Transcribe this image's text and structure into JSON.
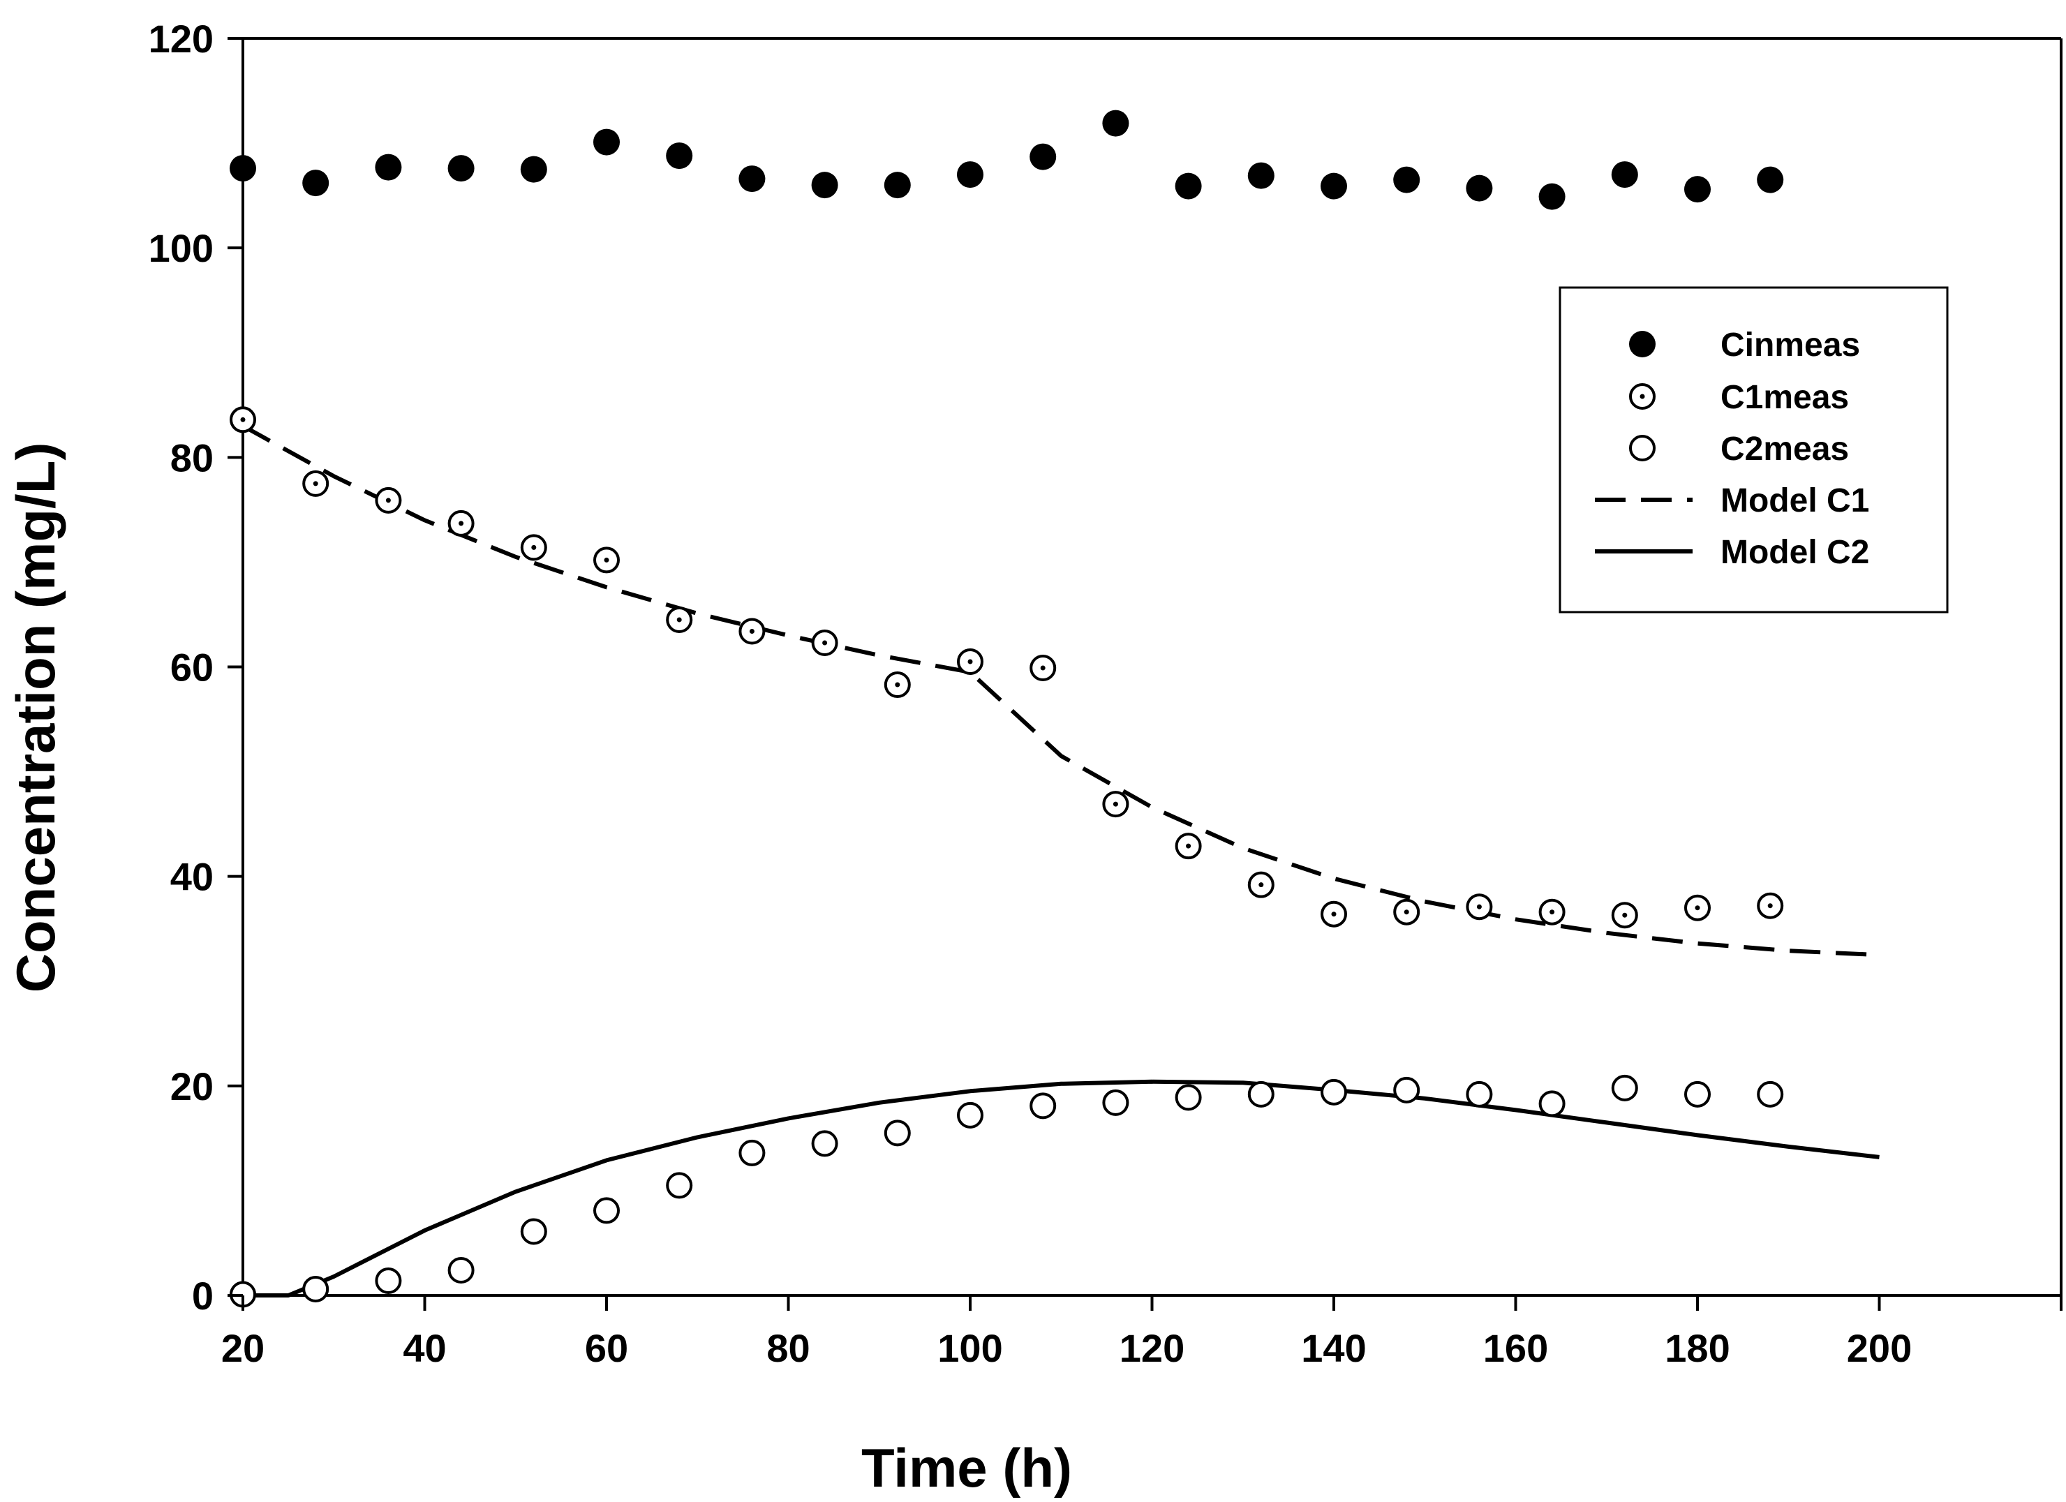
{
  "chart_data": {
    "type": "scatter",
    "title": "",
    "xlabel": "Time (h)",
    "ylabel": "Concentration (mg/L)",
    "xlim": [
      20,
      220
    ],
    "ylim": [
      0,
      120
    ],
    "xticks": [
      20,
      40,
      60,
      80,
      100,
      120,
      140,
      160,
      180,
      200
    ],
    "yticks": [
      0,
      20,
      40,
      60,
      80,
      100,
      120
    ],
    "grid": false,
    "legend_position": "right",
    "series": [
      {
        "name": "Cinmeas",
        "kind": "points",
        "marker": "filled-circle",
        "x": [
          20,
          28,
          36,
          44,
          52,
          60,
          68,
          76,
          84,
          92,
          100,
          108,
          116,
          124,
          132,
          140,
          148,
          156,
          164,
          172,
          180,
          188
        ],
        "y": [
          107.6,
          106.2,
          107.7,
          107.6,
          107.5,
          110.1,
          108.8,
          106.6,
          106.0,
          106.0,
          107.0,
          108.7,
          111.9,
          105.9,
          106.9,
          105.9,
          106.5,
          105.7,
          104.9,
          107.0,
          105.6,
          106.5
        ]
      },
      {
        "name": "C1meas",
        "kind": "points",
        "marker": "dotted-circle",
        "x": [
          20,
          28,
          36,
          44,
          52,
          60,
          68,
          76,
          84,
          92,
          100,
          108,
          116,
          124,
          132,
          140,
          148,
          156,
          164,
          172,
          180,
          188
        ],
        "y": [
          83.6,
          77.5,
          75.9,
          73.7,
          71.4,
          70.2,
          64.5,
          63.4,
          62.3,
          58.3,
          60.5,
          59.9,
          46.9,
          42.9,
          39.2,
          36.4,
          36.6,
          37.1,
          36.6,
          36.3,
          37.0,
          37.2
        ]
      },
      {
        "name": "C2meas",
        "kind": "points",
        "marker": "open-circle",
        "x": [
          20,
          28,
          36,
          44,
          52,
          60,
          68,
          76,
          84,
          92,
          100,
          108,
          116,
          124,
          132,
          140,
          148,
          156,
          164,
          172,
          180,
          188
        ],
        "y": [
          0.1,
          0.6,
          1.4,
          2.4,
          6.1,
          8.1,
          10.5,
          13.6,
          14.5,
          15.5,
          17.2,
          18.1,
          18.4,
          18.9,
          19.2,
          19.4,
          19.6,
          19.2,
          18.3,
          19.8,
          19.2,
          19.2
        ]
      },
      {
        "name": "Model C1",
        "kind": "line",
        "style": "dashed",
        "x": [
          20,
          30,
          40,
          50,
          60,
          70,
          80,
          90,
          100,
          105,
          110,
          120,
          130,
          140,
          150,
          160,
          170,
          180,
          190,
          200
        ],
        "y": [
          83.0,
          78.2,
          74.0,
          70.5,
          67.6,
          65.1,
          63.0,
          61.1,
          59.5,
          55.5,
          51.5,
          46.6,
          42.7,
          39.8,
          37.6,
          35.9,
          34.6,
          33.6,
          32.9,
          32.5
        ]
      },
      {
        "name": "Model C2",
        "kind": "line",
        "style": "solid",
        "x": [
          20,
          25,
          30,
          40,
          50,
          60,
          70,
          80,
          90,
          100,
          110,
          120,
          130,
          140,
          150,
          160,
          170,
          180,
          190,
          200
        ],
        "y": [
          0,
          0,
          1.8,
          6.2,
          9.9,
          12.9,
          15.1,
          16.9,
          18.4,
          19.5,
          20.2,
          20.4,
          20.3,
          19.6,
          18.8,
          17.7,
          16.5,
          15.3,
          14.2,
          13.2
        ]
      }
    ]
  }
}
